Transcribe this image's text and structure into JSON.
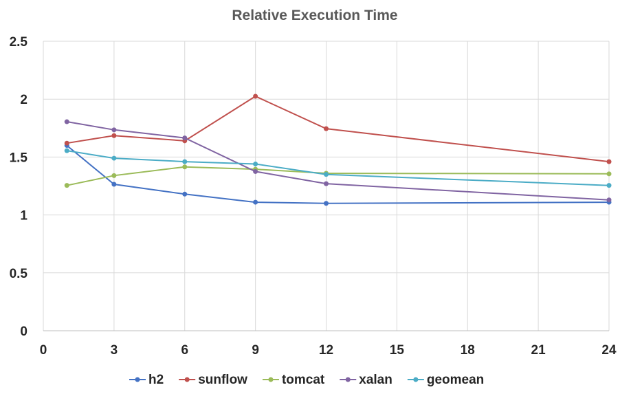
{
  "chart_data": {
    "type": "line",
    "title": "Relative Execution Time",
    "xlabel": "",
    "ylabel": "",
    "xlim": [
      0,
      24
    ],
    "ylim": [
      0,
      2.5
    ],
    "x_ticks": [
      0,
      3,
      6,
      9,
      12,
      15,
      18,
      21,
      24
    ],
    "y_ticks": [
      0,
      0.5,
      1,
      1.5,
      2,
      2.5
    ],
    "x_tick_labels": [
      "0",
      "3",
      "6",
      "9",
      "12",
      "15",
      "18",
      "21",
      "24"
    ],
    "y_tick_labels": [
      "0",
      "0.5",
      "1",
      "1.5",
      "2",
      "2.5"
    ],
    "x": [
      1,
      3,
      6,
      9,
      12,
      24
    ],
    "grid": true,
    "legend_position": "bottom",
    "series": [
      {
        "name": "h2",
        "color": "#4472C4",
        "values": [
          1.6,
          1.265,
          1.18,
          1.11,
          1.1,
          1.11
        ]
      },
      {
        "name": "sunflow",
        "color": "#C0504D",
        "values": [
          1.62,
          1.685,
          1.64,
          2.025,
          1.745,
          1.46
        ]
      },
      {
        "name": "tomcat",
        "color": "#9BBB59",
        "values": [
          1.255,
          1.34,
          1.415,
          1.395,
          1.36,
          1.355
        ]
      },
      {
        "name": "xalan",
        "color": "#8064A2",
        "values": [
          1.805,
          1.735,
          1.665,
          1.375,
          1.27,
          1.13
        ]
      },
      {
        "name": "geomean",
        "color": "#4BACC6",
        "values": [
          1.555,
          1.49,
          1.46,
          1.44,
          1.35,
          1.255
        ]
      }
    ]
  }
}
